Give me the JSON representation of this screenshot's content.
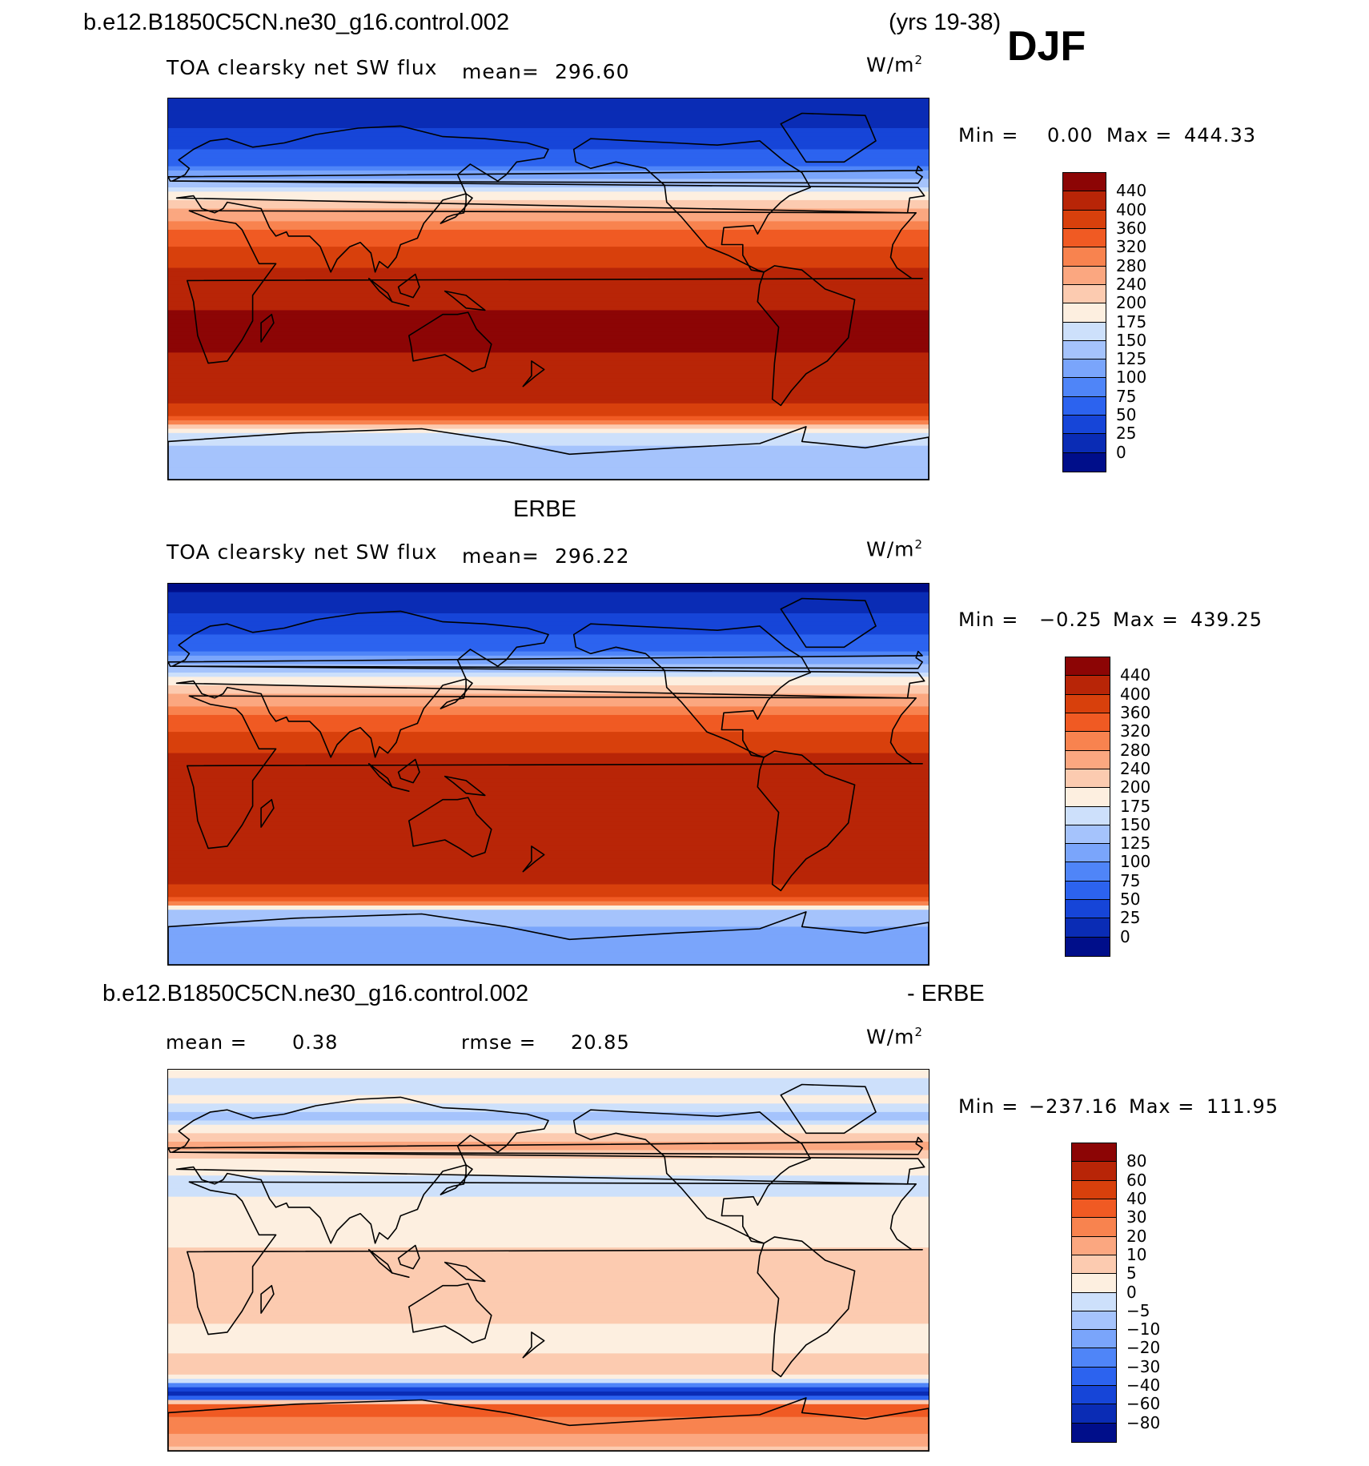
{
  "header": {
    "case_name": "b.e12.B1850C5CN.ne30_g16.control.002",
    "years": "(yrs 19-38)",
    "season": "DJF"
  },
  "colors": {
    "abs_palette": [
      "#000e8a",
      "#0a2cb5",
      "#1645d8",
      "#2c63ef",
      "#4f85f8",
      "#7aa5fb",
      "#a5c3fc",
      "#cde0fb",
      "#fdefe0",
      "#fccbb0",
      "#fba780",
      "#f8834f",
      "#f05a23",
      "#d8400c",
      "#b82507",
      "#8c0505"
    ],
    "diff_palette": [
      "#000e8a",
      "#0a2cb5",
      "#1645d8",
      "#2c63ef",
      "#4f85f8",
      "#7aa5fb",
      "#a5c3fc",
      "#cde0fb",
      "#fdefe0",
      "#fccbb0",
      "#fba780",
      "#f8834f",
      "#f05a23",
      "#d8400c",
      "#b82507",
      "#8c0505"
    ]
  },
  "chart_data": [
    {
      "type": "heatmap",
      "panel_title": "",
      "variable": "TOA clearsky net SW flux",
      "mean_label": "mean=",
      "mean_value": "296.60",
      "units_base": "W/m",
      "units_exp": "2",
      "min_label": "Min =",
      "min_value": "0.00",
      "max_label": "Max =",
      "max_value": "444.33",
      "colorbar_levels": [
        "440",
        "400",
        "360",
        "320",
        "280",
        "240",
        "200",
        "175",
        "150",
        "125",
        "100",
        "75",
        "50",
        "25",
        "0"
      ],
      "palette": "abs_palette",
      "zonal_profile": [
        {
          "lat": 90,
          "level": 1
        },
        {
          "lat": 80,
          "level": 1
        },
        {
          "lat": 70,
          "level": 2
        },
        {
          "lat": 60,
          "level": 3
        },
        {
          "lat": 55,
          "level": 5
        },
        {
          "lat": 50,
          "level": 6
        },
        {
          "lat": 45,
          "level": 8
        },
        {
          "lat": 40,
          "level": 9
        },
        {
          "lat": 35,
          "level": 10
        },
        {
          "lat": 30,
          "level": 11
        },
        {
          "lat": 25,
          "level": 12
        },
        {
          "lat": 15,
          "level": 13
        },
        {
          "lat": 5,
          "level": 14
        },
        {
          "lat": -5,
          "level": 14
        },
        {
          "lat": -15,
          "level": 15
        },
        {
          "lat": -25,
          "level": 15
        },
        {
          "lat": -35,
          "level": 14
        },
        {
          "lat": -50,
          "level": 14
        },
        {
          "lat": -58,
          "level": 13
        },
        {
          "lat": -63,
          "level": 11
        },
        {
          "lat": -68,
          "level": 7
        },
        {
          "lat": -80,
          "level": 6
        },
        {
          "lat": -90,
          "level": 6
        }
      ]
    },
    {
      "type": "heatmap",
      "panel_title": "ERBE",
      "variable": "TOA clearsky net SW flux",
      "mean_label": "mean=",
      "mean_value": "296.22",
      "units_base": "W/m",
      "units_exp": "2",
      "min_label": "Min =",
      "min_value": "−0.25",
      "max_label": "Max =",
      "max_value": "439.25",
      "colorbar_levels": [
        "440",
        "400",
        "360",
        "320",
        "280",
        "240",
        "200",
        "175",
        "150",
        "125",
        "100",
        "75",
        "50",
        "25",
        "0"
      ],
      "palette": "abs_palette",
      "zonal_profile": [
        {
          "lat": 90,
          "level": 0
        },
        {
          "lat": 80,
          "level": 1
        },
        {
          "lat": 70,
          "level": 2
        },
        {
          "lat": 60,
          "level": 3
        },
        {
          "lat": 55,
          "level": 5
        },
        {
          "lat": 50,
          "level": 6
        },
        {
          "lat": 45,
          "level": 8
        },
        {
          "lat": 40,
          "level": 9
        },
        {
          "lat": 35,
          "level": 10
        },
        {
          "lat": 30,
          "level": 11
        },
        {
          "lat": 25,
          "level": 12
        },
        {
          "lat": 15,
          "level": 13
        },
        {
          "lat": 5,
          "level": 14
        },
        {
          "lat": -5,
          "level": 14
        },
        {
          "lat": -15,
          "level": 14
        },
        {
          "lat": -25,
          "level": 14
        },
        {
          "lat": -35,
          "level": 14
        },
        {
          "lat": -50,
          "level": 14
        },
        {
          "lat": -55,
          "level": 13
        },
        {
          "lat": -60,
          "level": 12
        },
        {
          "lat": -65,
          "level": 6
        },
        {
          "lat": -80,
          "level": 5
        },
        {
          "lat": -90,
          "level": 5
        }
      ]
    },
    {
      "type": "heatmap",
      "panel_title_left": "b.e12.B1850C5CN.ne30_g16.control.002",
      "panel_title_right": "- ERBE",
      "mean_label": "mean =",
      "mean_value": "0.38",
      "rmse_label": "rmse =",
      "rmse_value": "20.85",
      "units_base": "W/m",
      "units_exp": "2",
      "min_label": "Min =",
      "min_value": "−237.16",
      "max_label": "Max =",
      "max_value": "111.95",
      "colorbar_levels": [
        "80",
        "60",
        "40",
        "30",
        "20",
        "10",
        "5",
        "0",
        "−5",
        "−10",
        "−20",
        "−30",
        "−40",
        "−60",
        "−80"
      ],
      "palette": "diff_palette",
      "zonal_profile": [
        {
          "lat": 90,
          "level": 8
        },
        {
          "lat": 82,
          "level": 7
        },
        {
          "lat": 75,
          "level": 8
        },
        {
          "lat": 68,
          "level": 6
        },
        {
          "lat": 62,
          "level": 8
        },
        {
          "lat": 55,
          "level": 10
        },
        {
          "lat": 45,
          "level": 8
        },
        {
          "lat": 35,
          "level": 7
        },
        {
          "lat": 25,
          "level": 8
        },
        {
          "lat": 10,
          "level": 8
        },
        {
          "lat": 0,
          "level": 9
        },
        {
          "lat": -20,
          "level": 9
        },
        {
          "lat": -40,
          "level": 8
        },
        {
          "lat": -50,
          "level": 9
        },
        {
          "lat": -56,
          "level": 8
        },
        {
          "lat": -60,
          "level": 3
        },
        {
          "lat": -64,
          "level": 0
        },
        {
          "lat": -68,
          "level": 12
        },
        {
          "lat": -80,
          "level": 11
        },
        {
          "lat": -90,
          "level": 9
        }
      ]
    }
  ]
}
